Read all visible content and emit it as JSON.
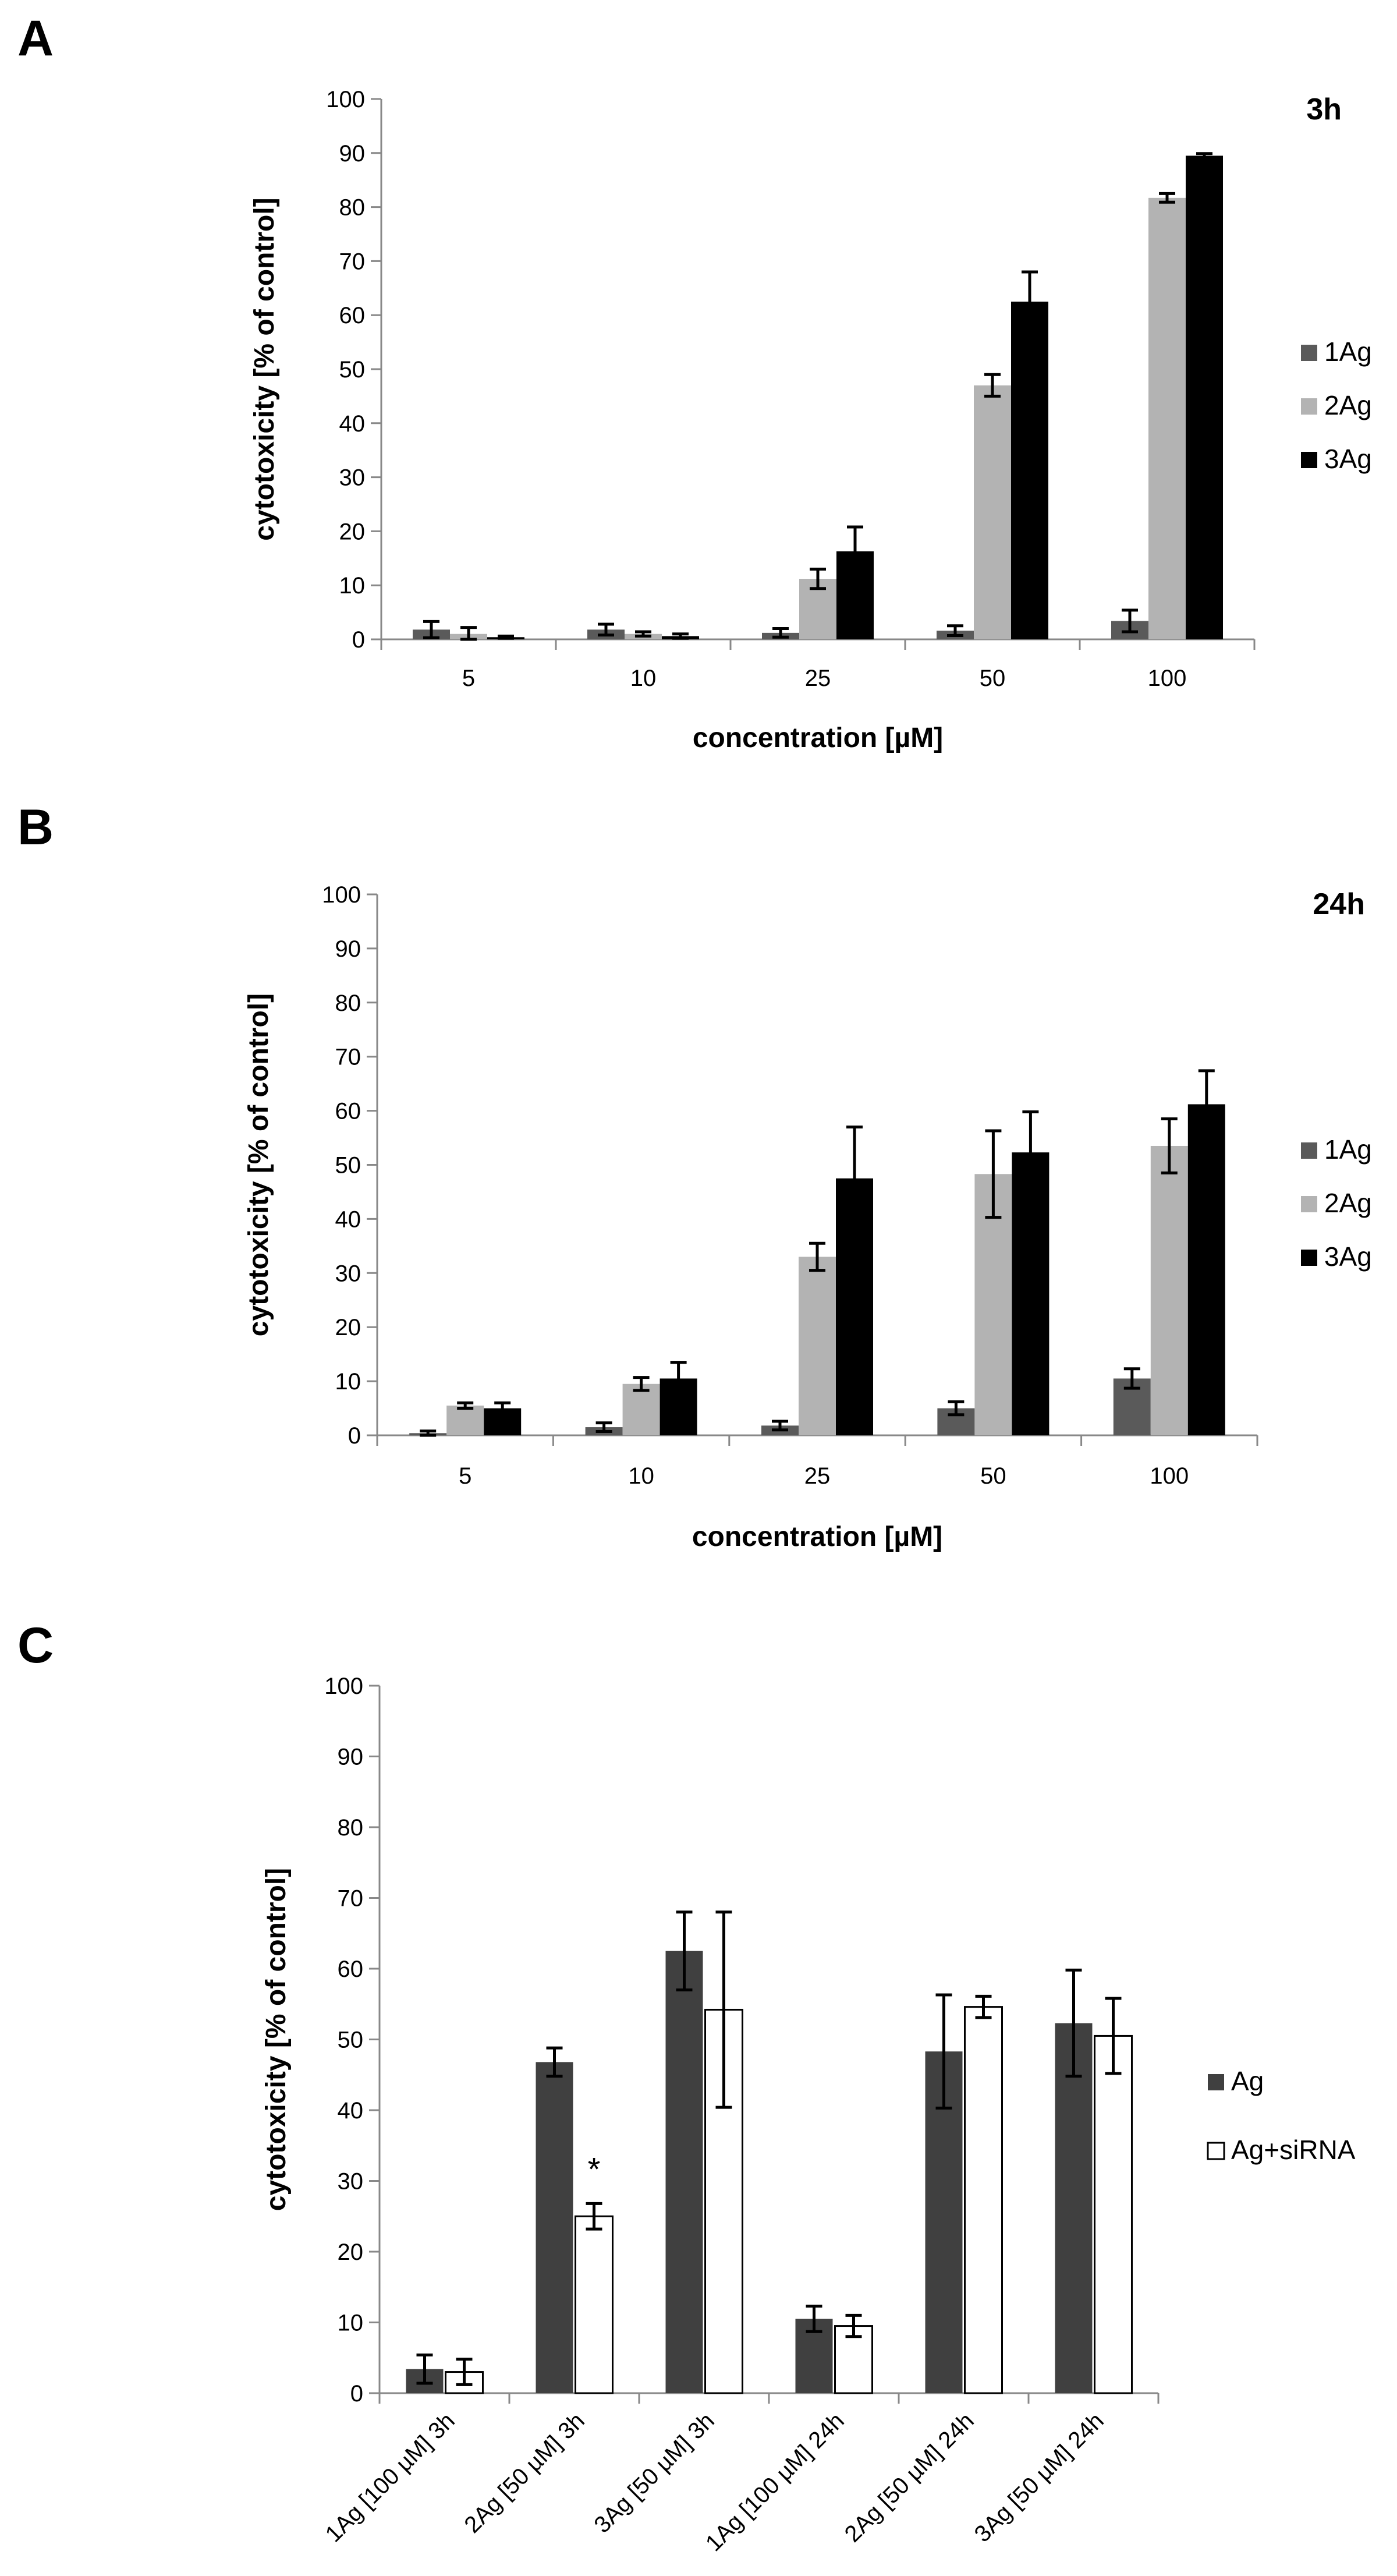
{
  "figure": {
    "panel_labels": [
      "A",
      "B",
      "C"
    ]
  },
  "colors": {
    "1Ag": "#5a5a5a",
    "2Ag": "#b3b3b3",
    "3Ag": "#000000",
    "Ag": "#404040",
    "Ag+siRNA": "#ffffff",
    "bar_outline": "#000000"
  },
  "chart_data": [
    {
      "panel": "A",
      "type": "bar",
      "time_label": "3h",
      "xlabel": "concentration [µM]",
      "ylabel": "cytotoxicity [% of control]",
      "ylim": [
        0,
        100
      ],
      "yticks": [
        0,
        10,
        20,
        30,
        40,
        50,
        60,
        70,
        80,
        90,
        100
      ],
      "categories": [
        "5",
        "10",
        "25",
        "50",
        "100"
      ],
      "legend_position": "right",
      "series": [
        {
          "name": "1Ag",
          "color": "#5a5a5a",
          "values": [
            1.8,
            1.8,
            1.2,
            1.6,
            3.4
          ],
          "errors": [
            1.5,
            1.0,
            0.8,
            0.9,
            2.0
          ]
        },
        {
          "name": "2Ag",
          "color": "#b3b3b3",
          "values": [
            1.0,
            1.0,
            11.2,
            47.0,
            81.7
          ],
          "errors": [
            1.2,
            0.4,
            1.8,
            2.0,
            0.8
          ]
        },
        {
          "name": "3Ag",
          "color": "#000000",
          "values": [
            0.4,
            0.6,
            16.3,
            62.5,
            89.5
          ],
          "errors": [
            0.2,
            0.4,
            4.5,
            5.5,
            0.4
          ]
        }
      ]
    },
    {
      "panel": "B",
      "type": "bar",
      "time_label": "24h",
      "xlabel": "concentration [µM]",
      "ylabel": "cytotoxicity [% of control]",
      "ylim": [
        0,
        100
      ],
      "yticks": [
        0,
        10,
        20,
        30,
        40,
        50,
        60,
        70,
        80,
        90,
        100
      ],
      "categories": [
        "5",
        "10",
        "25",
        "50",
        "100"
      ],
      "legend_position": "right",
      "series": [
        {
          "name": "1Ag",
          "color": "#5a5a5a",
          "values": [
            0.4,
            1.5,
            1.8,
            5.0,
            10.5
          ],
          "errors": [
            0.4,
            0.8,
            0.8,
            1.2,
            1.8
          ]
        },
        {
          "name": "2Ag",
          "color": "#b3b3b3",
          "values": [
            5.5,
            9.5,
            33.0,
            48.3,
            53.5
          ],
          "errors": [
            0.5,
            1.2,
            2.5,
            8.0,
            5.0
          ]
        },
        {
          "name": "3Ag",
          "color": "#000000",
          "values": [
            5.0,
            10.5,
            47.5,
            52.3,
            61.2
          ],
          "errors": [
            1.0,
            3.0,
            9.5,
            7.5,
            6.2
          ]
        }
      ]
    },
    {
      "panel": "C",
      "type": "bar",
      "xlabel": "",
      "ylabel": "cytotoxicity [% of control]",
      "ylim": [
        0,
        100
      ],
      "yticks": [
        0,
        10,
        20,
        30,
        40,
        50,
        60,
        70,
        80,
        90,
        100
      ],
      "categories": [
        "1Ag [100 µM] 3h",
        "2Ag [50 µM] 3h",
        "3Ag [50 µM] 3h",
        "1Ag [100 µM] 24h",
        "2Ag [50 µM] 24h",
        "3Ag [50 µM] 24h"
      ],
      "legend_position": "right",
      "annotations": [
        {
          "text": "*",
          "category_index": 1,
          "series": "Ag+siRNA"
        }
      ],
      "series": [
        {
          "name": "Ag",
          "color": "#404040",
          "values": [
            3.4,
            46.8,
            62.5,
            10.5,
            48.3,
            52.3
          ],
          "errors": [
            2.0,
            2.0,
            5.5,
            1.8,
            8.0,
            7.5
          ]
        },
        {
          "name": "Ag+siRNA",
          "color": "#ffffff",
          "values": [
            3.0,
            25.0,
            54.2,
            9.5,
            54.6,
            50.5
          ],
          "errors": [
            1.8,
            1.8,
            13.8,
            1.5,
            1.5,
            5.3
          ]
        }
      ]
    }
  ]
}
